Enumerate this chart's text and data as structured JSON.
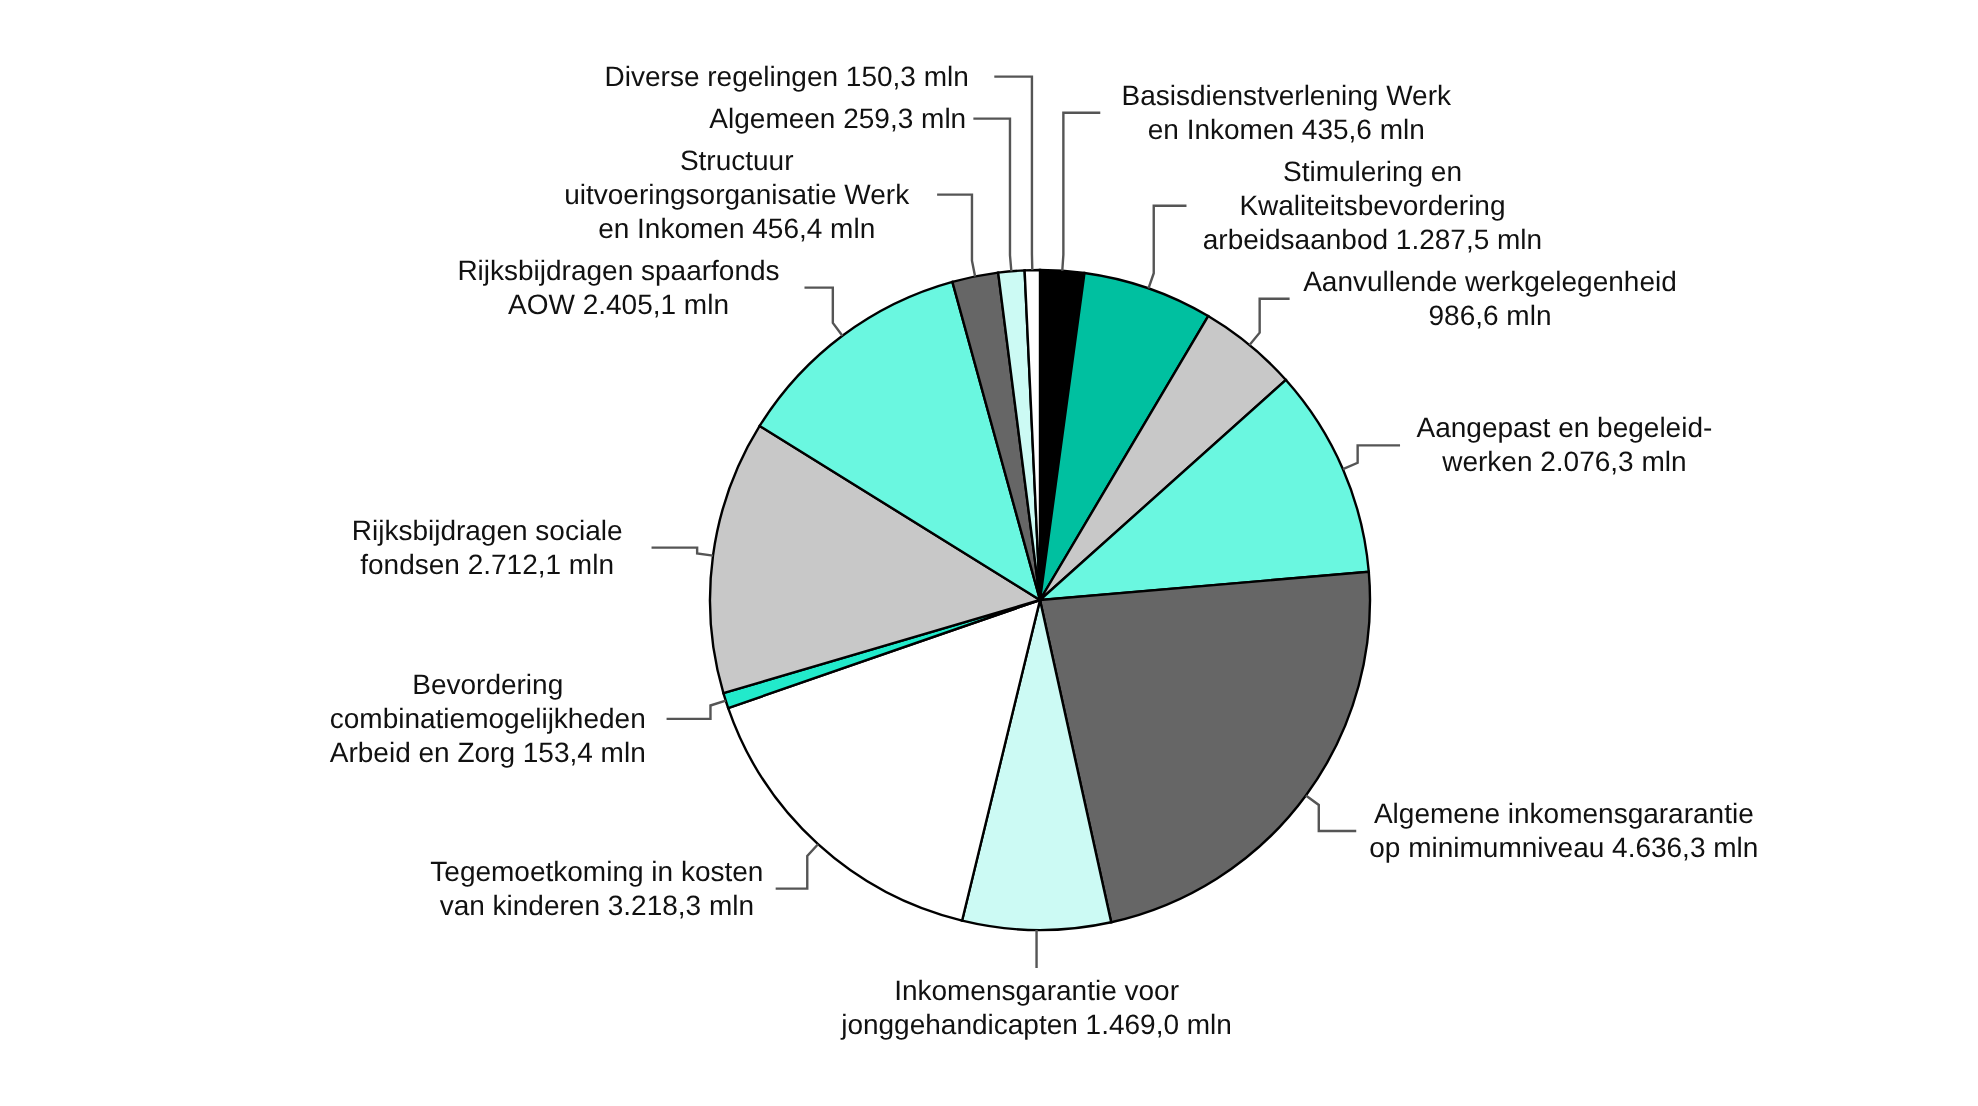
{
  "chart_data": {
    "type": "pie",
    "categories": [
      "Basisdienstverlening Werk en Inkomen",
      "Stimulering en Kwaliteitsbevordering arbeidsaanbod",
      "Aanvullende werkgelegenheid",
      "Aangepast en begeleid-werken",
      "Algemene inkomensgararantie op minimumniveau",
      "Inkomensgarantie voor jonggehandicapten",
      "Tegemoetkoming in kosten van kinderen",
      "Bevordering combinatiemogelijkheden Arbeid en Zorg",
      "Rijksbijdragen sociale fondsen",
      "Rijksbijdragen spaarfonds AOW",
      "Structuur uitvoeringsorganisatie Werk en Inkomen",
      "Algemeen",
      "Diverse regelingen"
    ],
    "values": [
      435.6,
      1287.5,
      986.6,
      2076.3,
      4636.3,
      1469.0,
      3218.3,
      153.4,
      2712.1,
      2405.1,
      456.4,
      259.3,
      150.3
    ],
    "value_labels": [
      "435,6 mln",
      "1.287,5 mln",
      "986,6 mln",
      "2.076,3 mln",
      "4.636,3 mln",
      "1.469,0 mln",
      "3.218,3 mln",
      "153,4 mln",
      "2.712,1 mln",
      "2.405,1 mln",
      "456,4 mln",
      "259,3 mln",
      "150,3 mln"
    ],
    "colors": [
      "#000000",
      "#00c0a0",
      "#c8c8c8",
      "#6af7e0",
      "#666666",
      "#ccfaf4",
      "#ffffff",
      "#22eacb",
      "#c8c8c8",
      "#6af7e0",
      "#666666",
      "#ccfaf4",
      "#ffffff"
    ]
  }
}
